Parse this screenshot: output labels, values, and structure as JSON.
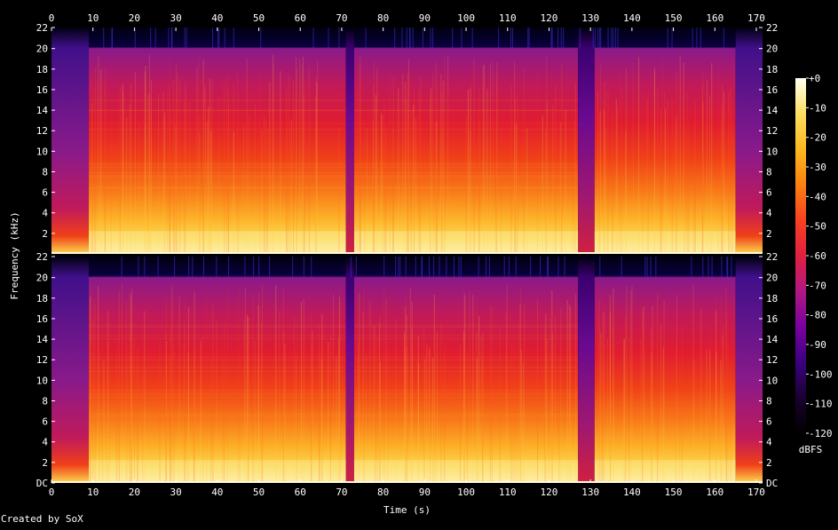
{
  "chart_data": {
    "type": "heatmap",
    "title": "",
    "xlabel": "Time (s)",
    "ylabel": "Frequency (kHz)",
    "xlim": [
      0,
      171.5
    ],
    "ylim": [
      0,
      22.05
    ],
    "x_ticks": [
      "0",
      "10",
      "20",
      "30",
      "40",
      "50",
      "60",
      "70",
      "80",
      "90",
      "100",
      "110",
      "120",
      "130",
      "140",
      "150",
      "160",
      "170"
    ],
    "y_ticks_channel1": [
      "2",
      "4",
      "6",
      "8",
      "10",
      "12",
      "14",
      "16",
      "18",
      "20",
      "22"
    ],
    "y_ticks_channel2": [
      "DC",
      "2",
      "4",
      "6",
      "8",
      "10",
      "12",
      "14",
      "16",
      "18",
      "20",
      "22"
    ],
    "channels": 2,
    "cutoff_khz": 20,
    "colorbar": {
      "label": "dBFS",
      "range": [
        -120,
        0
      ],
      "ticks": [
        "+0",
        "-10",
        "-20",
        "-30",
        "-40",
        "-50",
        "-60",
        "-70",
        "-80",
        "-90",
        "-100",
        "-110",
        "-120"
      ],
      "colors": [
        "#000000",
        "#1a0030",
        "#3a0080",
        "#7a00a0",
        "#b01880",
        "#e02040",
        "#f84020",
        "#fc8010",
        "#fcb820",
        "#fce060",
        "#fffff0"
      ]
    },
    "segments": [
      {
        "start": 0,
        "end": 9,
        "level": "fade-in"
      },
      {
        "start": 9,
        "end": 71,
        "level": "loud"
      },
      {
        "start": 71,
        "end": 73,
        "level": "quiet"
      },
      {
        "start": 73,
        "end": 127,
        "level": "loud"
      },
      {
        "start": 127,
        "end": 131,
        "level": "break"
      },
      {
        "start": 131,
        "end": 165,
        "level": "loud"
      },
      {
        "start": 165,
        "end": 171.5,
        "level": "fade-out"
      }
    ]
  },
  "footer": {
    "credit": "Created by SoX"
  }
}
